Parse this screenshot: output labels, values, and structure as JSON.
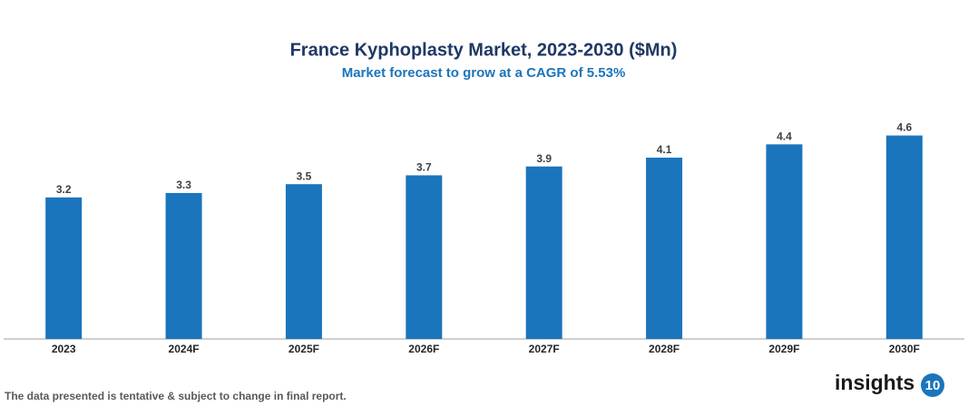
{
  "chart_data": {
    "type": "bar",
    "title": "France Kyphoplasty Market, 2023-2030 ($Mn)",
    "subtitle": "Market forecast to grow at a CAGR of 5.53%",
    "categories": [
      "2023",
      "2024F",
      "2025F",
      "2026F",
      "2027F",
      "2028F",
      "2029F",
      "2030F"
    ],
    "values": [
      3.2,
      3.3,
      3.5,
      3.7,
      3.9,
      4.1,
      4.4,
      4.6
    ],
    "color": "#1b75bc",
    "ylim": [
      0,
      5
    ],
    "footnote": "The data presented is tentative & subject to change in final report.",
    "logo_text": "insights",
    "logo_badge": "10"
  }
}
